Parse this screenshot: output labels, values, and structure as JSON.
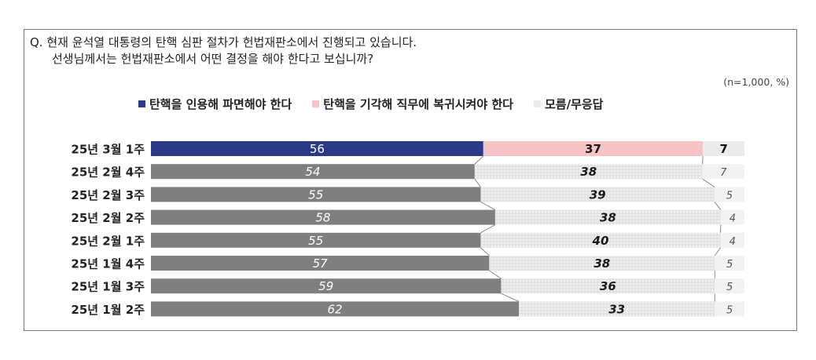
{
  "question": {
    "line1": "Q. 현재 윤석열 대통령의 탄핵 심판 절차가 헌법재판소에서 진행되고 있습니다.",
    "line2": "선생님께서는 헌법재판소에서 어떤 결정을 해야 한다고 보십니까?"
  },
  "note": "(n=1,000, %)",
  "colors": {
    "remove_current": "#2a3a86",
    "restore_current": "#f6c3c7",
    "dk_current": "#ebebeb",
    "remove_past": "#7f7f7f",
    "restore_past": "#e3e3e3",
    "dk_past": "#f2f2f2"
  },
  "chart_data": {
    "type": "bar",
    "orientation": "horizontal-stacked-100",
    "categories": [
      "25년 3월 1주",
      "25년 2월 4주",
      "25년 2월 3주",
      "25년 2월 2주",
      "25년 2월 1주",
      "25년 1월 4주",
      "25년 1월 3주",
      "25년 1월 2주"
    ],
    "series": [
      {
        "name": "탄핵을 인용해 파면해야 한다",
        "values": [
          56,
          54,
          55,
          58,
          55,
          57,
          59,
          62
        ]
      },
      {
        "name": "탄핵을 기각해 직무에 복귀시켜야 한다",
        "values": [
          37,
          38,
          39,
          38,
          40,
          38,
          36,
          33
        ]
      },
      {
        "name": "모름/무응답",
        "values": [
          7,
          7,
          5,
          4,
          4,
          5,
          5,
          5
        ]
      }
    ],
    "unit": "%"
  }
}
